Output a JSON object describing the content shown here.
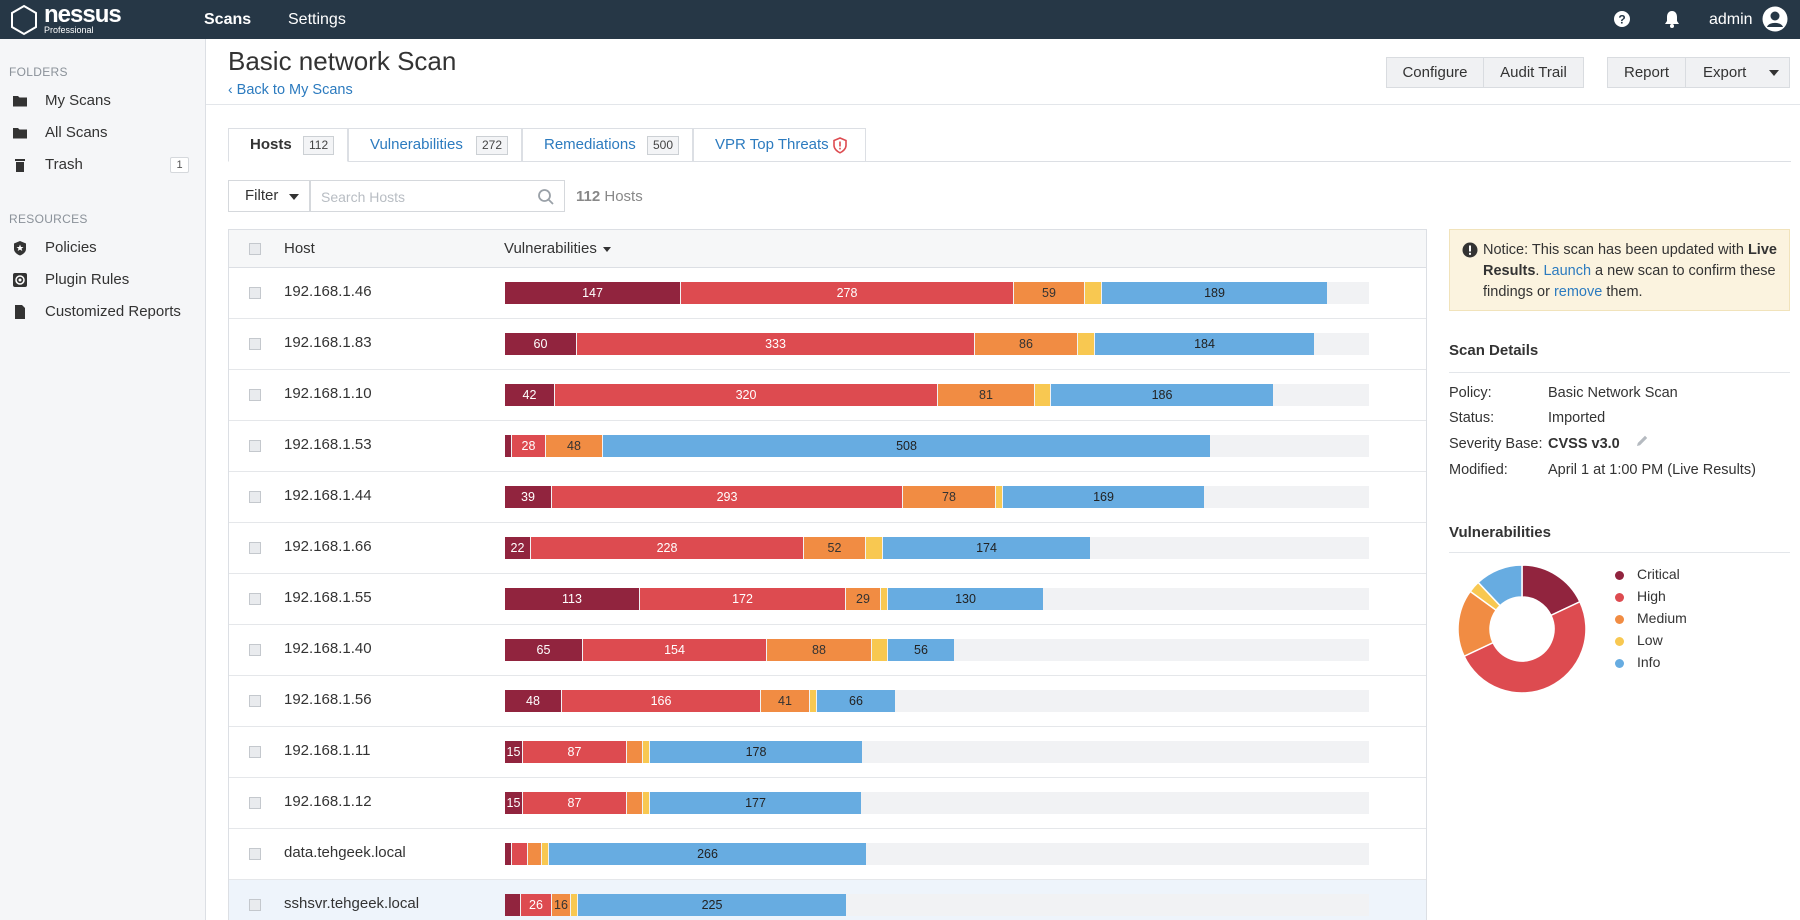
{
  "app": {
    "logo_name": "nessus",
    "logo_edition": "Professional",
    "nav": {
      "scans": "Scans",
      "settings": "Settings"
    },
    "user": "admin"
  },
  "sidebar": {
    "folders_heading": "FOLDERS",
    "folders": [
      {
        "label": "My Scans",
        "icon": "folder-icon",
        "count": ""
      },
      {
        "label": "All Scans",
        "icon": "folder-icon",
        "count": ""
      },
      {
        "label": "Trash",
        "icon": "trash-icon",
        "count": "1"
      }
    ],
    "resources_heading": "RESOURCES",
    "resources": [
      {
        "label": "Policies",
        "icon": "policy-icon"
      },
      {
        "label": "Plugin Rules",
        "icon": "plugin-rules-icon"
      },
      {
        "label": "Customized Reports",
        "icon": "report-icon"
      }
    ]
  },
  "header": {
    "title": "Basic network Scan",
    "back_link": "Back to My Scans",
    "buttons": {
      "configure": "Configure",
      "audit_trail": "Audit Trail",
      "report": "Report",
      "export": "Export"
    }
  },
  "tabs": [
    {
      "label": "Hosts",
      "count": "112",
      "active": true
    },
    {
      "label": "Vulnerabilities",
      "count": "272",
      "active": false
    },
    {
      "label": "Remediations",
      "count": "500",
      "active": false
    },
    {
      "label": "VPR Top Threats",
      "count": "",
      "active": false
    }
  ],
  "filter": {
    "label": "Filter",
    "search_placeholder": "Search Hosts",
    "count_number": "112",
    "count_label": "Hosts"
  },
  "table": {
    "columns": {
      "host": "Host",
      "vulnerabilities": "Vulnerabilities"
    },
    "scale_max": 722,
    "rows": [
      {
        "host": "192.168.1.46",
        "critical": 147,
        "high": 278,
        "medium": 59,
        "low": 14,
        "info": 189
      },
      {
        "host": "192.168.1.83",
        "critical": 60,
        "high": 333,
        "medium": 86,
        "low": 14,
        "info": 184
      },
      {
        "host": "192.168.1.10",
        "critical": 42,
        "high": 320,
        "medium": 81,
        "low": 13,
        "info": 186
      },
      {
        "host": "192.168.1.53",
        "critical": 6,
        "high": 28,
        "medium": 48,
        "low": 0,
        "info": 508
      },
      {
        "host": "192.168.1.44",
        "critical": 39,
        "high": 293,
        "medium": 78,
        "low": 6,
        "info": 169
      },
      {
        "host": "192.168.1.66",
        "critical": 22,
        "high": 228,
        "medium": 52,
        "low": 14,
        "info": 174
      },
      {
        "host": "192.168.1.55",
        "critical": 113,
        "high": 172,
        "medium": 29,
        "low": 6,
        "info": 130
      },
      {
        "host": "192.168.1.40",
        "critical": 65,
        "high": 154,
        "medium": 88,
        "low": 13,
        "info": 56
      },
      {
        "host": "192.168.1.56",
        "critical": 48,
        "high": 166,
        "medium": 41,
        "low": 6,
        "info": 66
      },
      {
        "host": "192.168.1.11",
        "critical": 15,
        "high": 87,
        "medium": 13,
        "low": 6,
        "info": 178
      },
      {
        "host": "192.168.1.12",
        "critical": 15,
        "high": 87,
        "medium": 13,
        "low": 6,
        "info": 177
      },
      {
        "host": "data.tehgeek.local",
        "critical": 6,
        "high": 13,
        "medium": 12,
        "low": 6,
        "info": 266
      },
      {
        "host": "sshsvr.tehgeek.local",
        "critical": 13,
        "high": 26,
        "medium": 16,
        "low": 6,
        "info": 225
      }
    ],
    "highlight_last_row": true
  },
  "notice": {
    "prefix": "Notice: This scan has been updated with ",
    "bold": "Live Results",
    "sep": ". ",
    "launch": "Launch",
    "middle": " a new scan to confirm these findings or ",
    "remove": "remove",
    "suffix": " them."
  },
  "scan_details": {
    "heading": "Scan Details",
    "items": [
      {
        "label": "Policy:",
        "value": "Basic Network Scan",
        "bold": false
      },
      {
        "label": "Status:",
        "value": "Imported",
        "bold": false
      },
      {
        "label": "Severity Base:",
        "value": "CVSS v3.0",
        "bold": true
      },
      {
        "label": "Modified:",
        "value": "April 1 at 1:00 PM (Live Results)",
        "bold": false
      }
    ]
  },
  "vuln_chart": {
    "heading": "Vulnerabilities",
    "legend": [
      "Critical",
      "High",
      "Medium",
      "Low",
      "Info"
    ]
  },
  "chart_data": {
    "type": "pie",
    "donut": true,
    "categories": [
      "Critical",
      "High",
      "Medium",
      "Low",
      "Info"
    ],
    "values": [
      18,
      50,
      17,
      3,
      12
    ],
    "colors": [
      "#91243e",
      "#dd4b50",
      "#f18c43",
      "#f8c851",
      "#67acE1"
    ]
  },
  "colors": {
    "critical": "#91243e",
    "high": "#dd4b50",
    "medium": "#f18c43",
    "low": "#f8c851",
    "info": "#67ace1",
    "topbar": "#263746",
    "link": "#2c7bbf"
  }
}
